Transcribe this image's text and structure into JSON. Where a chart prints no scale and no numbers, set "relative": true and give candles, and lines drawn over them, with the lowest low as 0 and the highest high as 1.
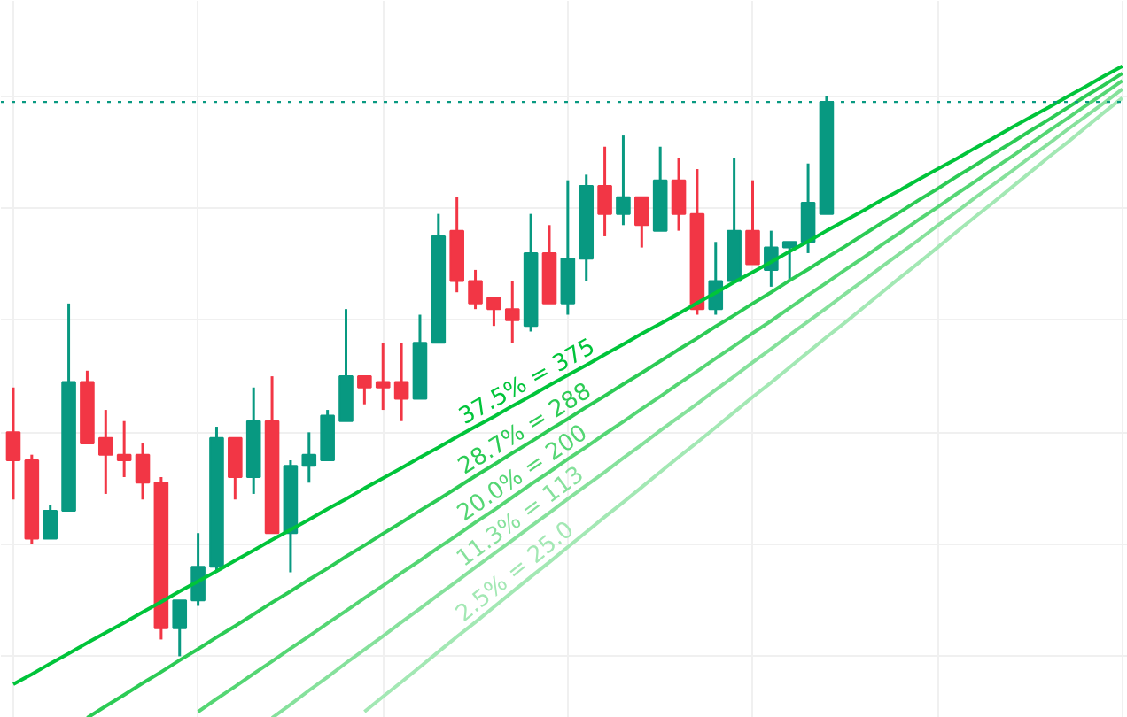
{
  "chart_data": {
    "type": "candlestick",
    "relative": true,
    "categories": [
      null,
      null,
      null,
      null,
      null,
      null,
      null,
      null,
      null,
      null,
      null,
      null,
      null,
      null,
      null,
      null,
      null,
      null,
      null,
      null,
      null,
      null,
      null,
      null,
      null,
      null,
      null,
      null,
      null,
      null,
      null,
      null,
      null,
      null,
      null,
      null,
      null,
      null,
      null,
      null,
      null,
      null,
      null,
      null,
      null,
      null,
      null,
      null,
      null,
      null,
      null,
      null,
      null,
      null,
      null,
      null,
      null,
      null,
      null,
      null,
      null
    ],
    "ohlc": [
      [
        0.4,
        0.48,
        0.28,
        0.35
      ],
      [
        0.35,
        0.36,
        0.2,
        0.21
      ],
      [
        0.21,
        0.27,
        0.21,
        0.26
      ],
      [
        0.26,
        0.63,
        0.26,
        0.49
      ],
      [
        0.49,
        0.51,
        0.38,
        0.38
      ],
      [
        0.39,
        0.44,
        0.29,
        0.36
      ],
      [
        0.36,
        0.42,
        0.32,
        0.35
      ],
      [
        0.36,
        0.38,
        0.28,
        0.31
      ],
      [
        0.31,
        0.32,
        0.03,
        0.05
      ],
      [
        0.05,
        0.1,
        0.0,
        0.1
      ],
      [
        0.1,
        0.22,
        0.09,
        0.16
      ],
      [
        0.16,
        0.41,
        0.15,
        0.39
      ],
      [
        0.39,
        0.39,
        0.28,
        0.32
      ],
      [
        0.32,
        0.48,
        0.29,
        0.42
      ],
      [
        0.42,
        0.5,
        0.22,
        0.22
      ],
      [
        0.22,
        0.35,
        0.15,
        0.34
      ],
      [
        0.34,
        0.4,
        0.31,
        0.36
      ],
      [
        0.35,
        0.44,
        0.35,
        0.43
      ],
      [
        0.42,
        0.62,
        0.42,
        0.5
      ],
      [
        0.5,
        0.5,
        0.45,
        0.48
      ],
      [
        0.49,
        0.56,
        0.44,
        0.48
      ],
      [
        0.49,
        0.56,
        0.42,
        0.46
      ],
      [
        0.46,
        0.61,
        0.46,
        0.56
      ],
      [
        0.56,
        0.79,
        0.56,
        0.75
      ],
      [
        0.76,
        0.82,
        0.65,
        0.67
      ],
      [
        0.67,
        0.69,
        0.62,
        0.63
      ],
      [
        0.64,
        0.64,
        0.59,
        0.62
      ],
      [
        0.62,
        0.67,
        0.56,
        0.6
      ],
      [
        0.59,
        0.79,
        0.58,
        0.72
      ],
      [
        0.72,
        0.77,
        0.63,
        0.63
      ],
      [
        0.63,
        0.85,
        0.61,
        0.71
      ],
      [
        0.71,
        0.86,
        0.67,
        0.84
      ],
      [
        0.84,
        0.91,
        0.75,
        0.79
      ],
      [
        0.79,
        0.93,
        0.77,
        0.82
      ],
      [
        0.82,
        0.82,
        0.73,
        0.77
      ],
      [
        0.76,
        0.91,
        0.76,
        0.85
      ],
      [
        0.85,
        0.89,
        0.76,
        0.79
      ],
      [
        0.79,
        0.87,
        0.61,
        0.62
      ],
      [
        0.62,
        0.74,
        0.61,
        0.67
      ],
      [
        0.67,
        0.89,
        0.67,
        0.76
      ],
      [
        0.76,
        0.85,
        0.7,
        0.7
      ],
      [
        0.69,
        0.76,
        0.66,
        0.73
      ],
      [
        0.73,
        0.74,
        0.67,
        0.74
      ],
      [
        0.74,
        0.88,
        0.72,
        0.81
      ],
      [
        0.79,
        1.0,
        0.79,
        0.99
      ],
      null,
      null,
      null,
      null,
      null,
      null,
      null,
      null,
      null,
      null,
      null,
      null,
      null,
      null,
      null,
      null
    ],
    "colors": [
      "#f23645",
      "#f23645",
      "#089981",
      "#089981",
      "#f23645",
      "#f23645",
      "#f23645",
      "#f23645",
      "#f23645",
      "#089981",
      "#089981",
      "#089981",
      "#f23645",
      "#089981",
      "#f23645",
      "#089981",
      "#089981",
      "#089981",
      "#089981",
      "#f23645",
      "#f23645",
      "#f23645",
      "#089981",
      "#089981",
      "#f23645",
      "#f23645",
      "#f23645",
      "#f23645",
      "#089981",
      "#f23645",
      "#089981",
      "#089981",
      "#f23645",
      "#089981",
      "#f23645",
      "#089981",
      "#f23645",
      "#f23645",
      "#089981",
      "#089981",
      "#f23645",
      "#089981",
      "#089981",
      "#089981",
      "#089981",
      null,
      null,
      null,
      null,
      null,
      null,
      null,
      null,
      null,
      null,
      null,
      null,
      null,
      null,
      null,
      null
    ],
    "series": [
      {
        "type": "line",
        "name": "37.5% = 375",
        "color": "#00c43a",
        "values": [
          -0.05,
          -0.032,
          -0.013,
          0.005,
          0.024,
          0.042,
          0.06,
          0.079,
          0.097,
          0.116,
          0.134,
          0.152,
          0.171,
          0.189,
          0.208,
          0.226,
          0.244,
          0.263,
          0.281,
          0.3,
          0.318,
          0.336,
          0.355,
          0.373,
          0.392,
          0.41,
          0.428,
          0.447,
          0.465,
          0.484,
          0.502,
          0.52,
          0.539,
          0.557,
          0.576,
          0.594,
          0.612,
          0.631,
          0.649,
          0.668,
          0.686,
          0.704,
          0.723,
          0.741,
          0.76,
          0.778,
          0.796,
          0.815,
          0.833,
          0.852,
          0.87,
          0.888,
          0.907,
          0.925,
          0.944,
          0.962,
          0.98,
          0.999,
          1.017,
          1.036,
          1.054
        ]
      },
      {
        "type": "line",
        "name": "28.7% = 288",
        "color": "#2ccb55",
        "values": [
          null,
          null,
          null,
          null,
          -0.11,
          -0.089,
          -0.069,
          -0.048,
          -0.028,
          -0.007,
          0.013,
          0.034,
          0.054,
          0.075,
          0.096,
          0.116,
          0.137,
          0.157,
          0.178,
          0.198,
          0.219,
          0.239,
          0.26,
          0.28,
          0.301,
          0.322,
          0.342,
          0.363,
          0.383,
          0.404,
          0.424,
          0.445,
          0.465,
          0.486,
          0.506,
          0.527,
          0.548,
          0.568,
          0.589,
          0.609,
          0.63,
          0.65,
          0.671,
          0.691,
          0.712,
          0.732,
          0.753,
          0.774,
          0.794,
          0.815,
          0.835,
          0.856,
          0.876,
          0.897,
          0.917,
          0.938,
          0.958,
          0.979,
          1.0,
          1.02,
          1.041
        ]
      },
      {
        "type": "line",
        "name": "20.0% = 200",
        "color": "#55d674",
        "values": [
          null,
          null,
          null,
          null,
          null,
          null,
          null,
          null,
          null,
          null,
          -0.099,
          -0.076,
          -0.054,
          -0.031,
          -0.009,
          0.014,
          0.036,
          0.059,
          0.081,
          0.104,
          0.126,
          0.149,
          0.171,
          0.194,
          0.216,
          0.239,
          0.261,
          0.284,
          0.307,
          0.329,
          0.352,
          0.374,
          0.397,
          0.419,
          0.442,
          0.464,
          0.487,
          0.509,
          0.532,
          0.554,
          0.577,
          0.599,
          0.622,
          0.645,
          0.667,
          0.69,
          0.712,
          0.735,
          0.757,
          0.78,
          0.802,
          0.825,
          0.847,
          0.87,
          0.892,
          0.915,
          0.938,
          0.96,
          0.983,
          1.005,
          1.028
        ]
      },
      {
        "type": "line",
        "name": "11.3% = 113",
        "color": "#86e19c",
        "values": [
          null,
          null,
          null,
          null,
          null,
          null,
          null,
          null,
          null,
          null,
          null,
          null,
          null,
          null,
          -0.11,
          -0.086,
          -0.061,
          -0.037,
          -0.012,
          0.012,
          0.036,
          0.061,
          0.085,
          0.11,
          0.134,
          0.159,
          0.183,
          0.207,
          0.232,
          0.256,
          0.281,
          0.305,
          0.329,
          0.354,
          0.378,
          0.403,
          0.427,
          0.451,
          0.476,
          0.5,
          0.525,
          0.549,
          0.574,
          0.598,
          0.622,
          0.647,
          0.671,
          0.696,
          0.72,
          0.744,
          0.769,
          0.793,
          0.818,
          0.842,
          0.866,
          0.891,
          0.915,
          0.94,
          0.964,
          0.988,
          1.013
        ]
      },
      {
        "type": "line",
        "name": "2.5% = 25.0",
        "color": "#a3e8b4",
        "values": [
          null,
          null,
          null,
          null,
          null,
          null,
          null,
          null,
          null,
          null,
          null,
          null,
          null,
          null,
          null,
          null,
          null,
          null,
          null,
          -0.099,
          -0.072,
          -0.046,
          -0.019,
          0.008,
          0.035,
          0.061,
          0.088,
          0.115,
          0.142,
          0.168,
          0.195,
          0.222,
          0.249,
          0.275,
          0.302,
          0.329,
          0.356,
          0.382,
          0.409,
          0.436,
          0.463,
          0.489,
          0.516,
          0.543,
          0.57,
          0.596,
          0.623,
          0.65,
          0.677,
          0.703,
          0.73,
          0.757,
          0.784,
          0.81,
          0.837,
          0.864,
          0.891,
          0.917,
          0.944,
          0.971,
          0.997
        ]
      }
    ],
    "ref_lines": [
      {
        "axis": "y",
        "value": 0.99,
        "color": "#089981",
        "line_style": "dotted"
      }
    ],
    "grid": true
  }
}
